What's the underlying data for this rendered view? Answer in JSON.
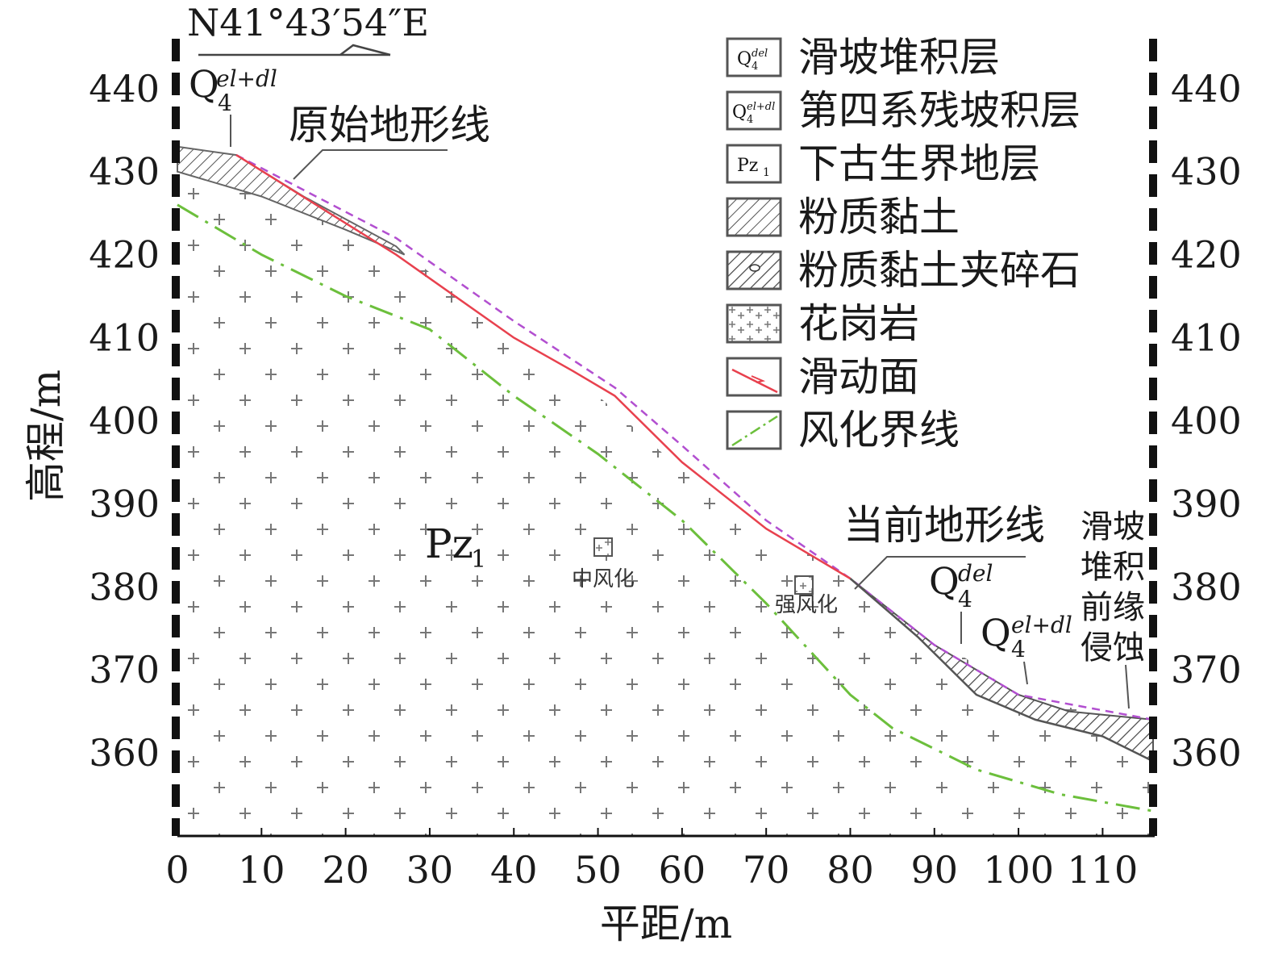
{
  "direction_label": "N41°43′54″E",
  "axes": {
    "xlabel": "平距/m",
    "ylabel": "高程/m",
    "x_ticks": [
      "0",
      "10",
      "20",
      "30",
      "40",
      "50",
      "60",
      "70",
      "80",
      "90",
      "100",
      "110"
    ],
    "y_ticks": [
      "440",
      "430",
      "420",
      "410",
      "400",
      "390",
      "380",
      "370",
      "360"
    ],
    "xlim": [
      0,
      116
    ],
    "ylim": [
      350,
      446
    ]
  },
  "legend": [
    {
      "symbol": "Q4del-box",
      "label": "滑坡堆积层"
    },
    {
      "symbol": "Q4eldl-box",
      "label": "第四系残坡积层"
    },
    {
      "symbol": "Pz1-box",
      "label": "下古生界地层"
    },
    {
      "symbol": "silty-clay-hatch",
      "label": "粉质黏土"
    },
    {
      "symbol": "silty-clay-gravel-hatch",
      "label": "粉质黏土夹碎石"
    },
    {
      "symbol": "granite-crosses",
      "label": "花岗岩"
    },
    {
      "symbol": "slip-surface-line",
      "label": "滑动面"
    },
    {
      "symbol": "weathering-boundary-line",
      "label": "风化界线"
    }
  ],
  "legend_symbols": {
    "q4del_main": "Q",
    "q4del_sup": "del",
    "q4eldl_main": "Q",
    "q4eldl_sup": "el+dl",
    "q4_sub": "4",
    "pz1_main": "Pz",
    "pz1_sub": "1"
  },
  "annotations": {
    "original_terrain": "原始地形线",
    "current_terrain": "当前地形线",
    "pz1_main": "Pz",
    "pz1_sub": "1",
    "moderate_weathered": "中风化",
    "strong_weathered": "强风化",
    "q_main": "Q",
    "q_sub": "4",
    "q_sup_eldl": "el+dl",
    "q_sup_del": "del",
    "toe_erosion_lines": [
      "滑坡",
      "堆积",
      "前缘",
      "侵蚀"
    ]
  },
  "profile_data": {
    "ground_surface_left": [
      [
        0,
        433
      ],
      [
        7,
        432
      ],
      [
        15,
        427
      ],
      [
        26,
        421
      ],
      [
        40,
        410
      ],
      [
        50,
        403
      ],
      [
        60,
        394
      ],
      [
        70,
        387
      ],
      [
        80,
        381
      ],
      [
        90,
        374
      ],
      [
        100,
        367
      ],
      [
        108,
        365
      ],
      [
        116,
        364
      ]
    ],
    "eldl_bottom_left": [
      [
        0,
        430
      ],
      [
        10,
        427
      ],
      [
        20,
        423
      ],
      [
        27,
        420
      ]
    ],
    "original_terrain": [
      [
        7,
        432
      ],
      [
        26,
        422
      ],
      [
        40,
        412
      ],
      [
        52,
        404
      ],
      [
        60,
        397
      ],
      [
        70,
        388
      ],
      [
        80,
        381
      ],
      [
        90,
        373
      ],
      [
        100,
        367
      ],
      [
        116,
        364
      ]
    ],
    "slip_surface": [
      [
        7,
        432
      ],
      [
        26,
        420
      ],
      [
        40,
        410
      ],
      [
        47,
        406
      ],
      [
        52,
        403
      ],
      [
        60,
        395
      ],
      [
        70,
        387
      ],
      [
        80,
        381
      ]
    ],
    "current_terrain_lower": [
      [
        80,
        381
      ],
      [
        88,
        374
      ],
      [
        95,
        367
      ],
      [
        102,
        364
      ],
      [
        110,
        362
      ],
      [
        116,
        359
      ]
    ],
    "del_upper_right": [
      [
        80,
        381
      ],
      [
        90,
        373
      ],
      [
        100,
        367
      ],
      [
        106,
        365
      ],
      [
        116,
        364
      ]
    ],
    "weathering_boundary": [
      [
        0,
        426
      ],
      [
        10,
        420
      ],
      [
        20,
        415
      ],
      [
        30,
        411
      ],
      [
        40,
        403
      ],
      [
        50,
        396
      ],
      [
        60,
        388
      ],
      [
        70,
        378
      ],
      [
        80,
        367
      ],
      [
        85,
        363
      ],
      [
        95,
        358
      ],
      [
        105,
        355
      ],
      [
        116,
        353
      ]
    ]
  },
  "colors": {
    "slip_surface": "#e8414e",
    "original_terrain": "#b24fd0",
    "weathering_boundary": "#6cbf3c",
    "hatch": "#444444",
    "frame": "#111111"
  }
}
